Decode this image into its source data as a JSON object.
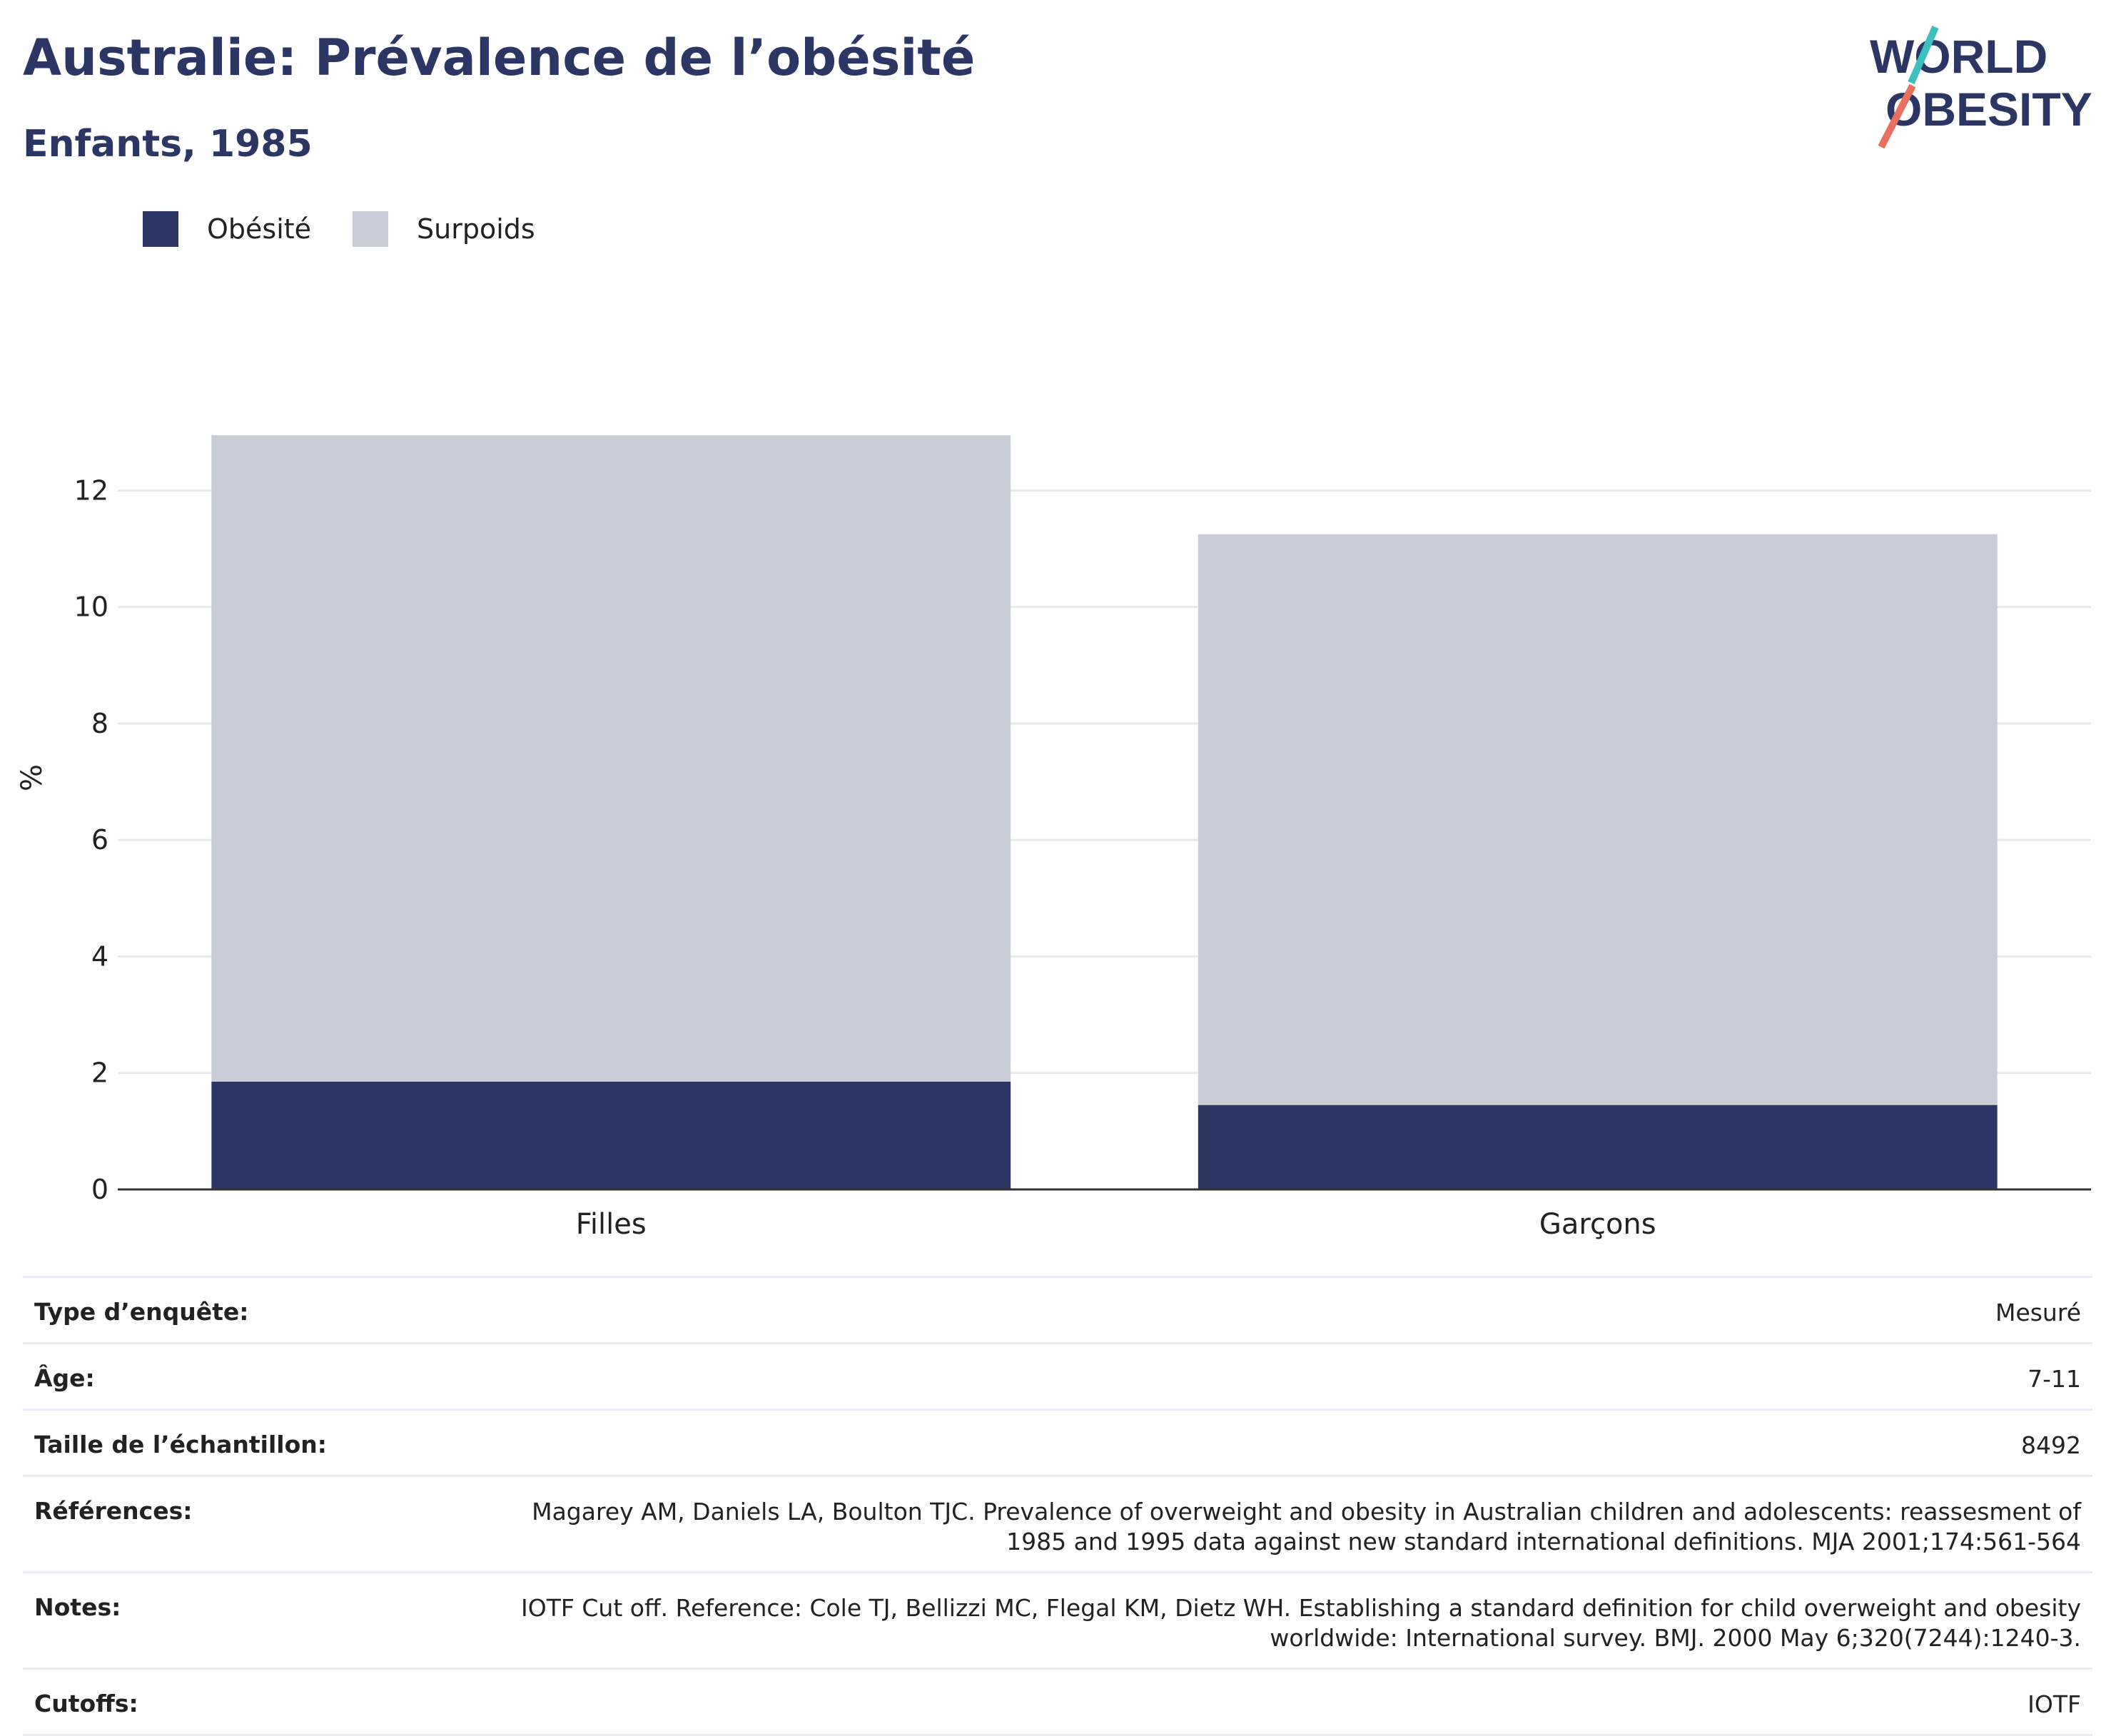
{
  "header": {
    "title": "Australie: Prévalence de l’obésité",
    "subtitle": "Enfants, 1985"
  },
  "logo": {
    "line1": "WORLD",
    "line2": "OBESITY",
    "colors": {
      "text": "#2b3664",
      "accent_top": "#3bbfbf",
      "accent_bottom": "#e8705f"
    }
  },
  "legend": {
    "items": [
      {
        "label": "Obésité",
        "color": "#2b3664"
      },
      {
        "label": "Surpoids",
        "color": "#cacdd8"
      }
    ]
  },
  "chart_data": {
    "type": "bar",
    "stacked": true,
    "categories": [
      "Filles",
      "Garçons"
    ],
    "series": [
      {
        "name": "Obésité",
        "color": "#2b3664",
        "values": [
          1.85,
          1.45
        ]
      },
      {
        "name": "Surpoids",
        "color": "#cacdd8",
        "values": [
          11.1,
          9.8
        ]
      }
    ],
    "ylabel": "%",
    "ylim": [
      0,
      13.5
    ],
    "yticks": [
      0,
      2,
      4,
      6,
      8,
      10,
      12
    ],
    "grid": true,
    "legend_position": "top-left"
  },
  "meta": {
    "rows": [
      {
        "key": "Type d’enquête:",
        "value": [
          "Mesuré"
        ]
      },
      {
        "key": "Âge:",
        "value": [
          "7-11"
        ]
      },
      {
        "key": "Taille de l’échantillon:",
        "value": [
          "8492"
        ]
      },
      {
        "key": "Références:",
        "value": [
          "Magarey AM, Daniels LA, Boulton TJC. Prevalence of overweight and obesity in Australian children and adolescents: reassesment of",
          "1985 and 1995 data against new standard international definitions. MJA 2001;174:561-564"
        ]
      },
      {
        "key": "Notes:",
        "value": [
          "IOTF Cut off. Reference: Cole TJ, Bellizzi MC, Flegal KM, Dietz WH. Establishing a standard definition for child overweight and obesity",
          "worldwide: International survey. BMJ. 2000 May 6;320(7244):1240-3."
        ]
      },
      {
        "key": "Cutoffs:",
        "value": [
          "IOTF"
        ]
      }
    ]
  }
}
